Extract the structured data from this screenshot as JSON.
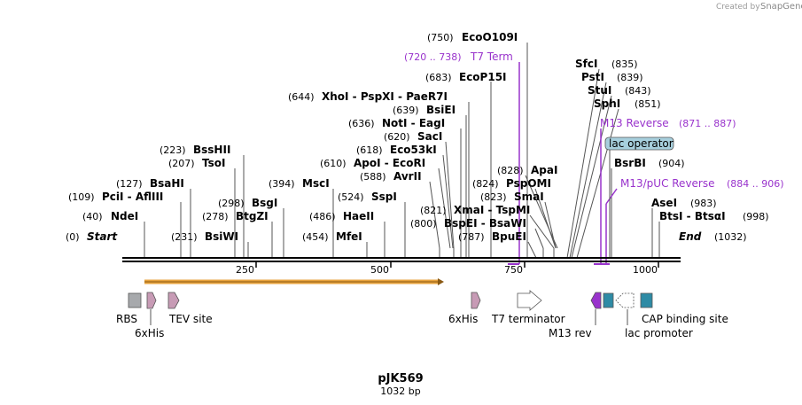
{
  "plasmid": {
    "name": "pJK569",
    "length_label": "1032 bp",
    "length": 1032
  },
  "watermark": {
    "prefix": "Created by",
    "brand": "SnapGene"
  },
  "ends": {
    "start_pos": "(0)",
    "start": "Start",
    "end": "End",
    "end_pos": "(1032)"
  },
  "ticks": [
    "250",
    "500",
    "750",
    "1000"
  ],
  "sites": [
    {
      "pos": "(750)",
      "name": "EcoO109I"
    },
    {
      "pos": "(683)",
      "name": "EcoP15I"
    },
    {
      "pos": "(644)",
      "name": "XhoI - PspXI - PaeR7I"
    },
    {
      "pos": "(639)",
      "name": "BsiEI"
    },
    {
      "pos": "(636)",
      "name": "NotI - EagI"
    },
    {
      "pos": "(620)",
      "name": "SacI"
    },
    {
      "pos": "(618)",
      "name": "Eco53kI"
    },
    {
      "pos": "(610)",
      "name": "ApoI - EcoRI"
    },
    {
      "pos": "(588)",
      "name": "AvrII"
    },
    {
      "pos": "(524)",
      "name": "SspI"
    },
    {
      "pos": "(486)",
      "name": "HaeII"
    },
    {
      "pos": "(454)",
      "name": "MfeI"
    },
    {
      "pos": "(394)",
      "name": "MscI"
    },
    {
      "pos": "(298)",
      "name": "BsgI"
    },
    {
      "pos": "(278)",
      "name": "BtgZI"
    },
    {
      "pos": "(231)",
      "name": "BsiWI"
    },
    {
      "pos": "(223)",
      "name": "BssHII"
    },
    {
      "pos": "(207)",
      "name": "TsoI"
    },
    {
      "pos": "(127)",
      "name": "BsaHI"
    },
    {
      "pos": "(109)",
      "name": "PciI - AflIII"
    },
    {
      "pos": "(40)",
      "name": "NdeI"
    },
    {
      "pos": "(828)",
      "name": "ApaI"
    },
    {
      "pos": "(824)",
      "name": "PspOMI"
    },
    {
      "pos": "(823)",
      "name": "SmaI"
    },
    {
      "pos": "(821)",
      "name": "XmaI - TspMI"
    },
    {
      "pos": "(800)",
      "name": "BspEI - BsaWI"
    },
    {
      "pos": "(787)",
      "name": "BpuEI"
    },
    {
      "pos": "(835)",
      "name": "SfcI"
    },
    {
      "pos": "(839)",
      "name": "PstI"
    },
    {
      "pos": "(843)",
      "name": "StuI"
    },
    {
      "pos": "(851)",
      "name": "SphI"
    },
    {
      "pos": "(904)",
      "name": "BsrBI"
    },
    {
      "pos": "(983)",
      "name": "AseI"
    },
    {
      "pos": "(998)",
      "name": "BtsI - BtsαI"
    }
  ],
  "primers": [
    {
      "name": "T7 Term",
      "range": "(720 .. 738)"
    },
    {
      "name": "M13 Reverse",
      "range": "(871 .. 887)"
    },
    {
      "name": "M13/pUC Reverse",
      "range": "(884 .. 906)"
    }
  ],
  "operator": "lac operator",
  "features": {
    "rbs": "RBS",
    "his1": "6xHis",
    "tev": "TEV site",
    "his2": "6xHis",
    "t7term": "T7 terminator",
    "m13rev": "M13 rev",
    "lacprom": "lac promoter",
    "cap": "CAP binding site"
  },
  "colors": {
    "primer": "#9933cc",
    "orf": "#e8a33d",
    "tag": "#c79bb5",
    "rbs": "#a7a9ac",
    "cap": "#2e8ba5",
    "operator": "#a7cfdd",
    "backbone": "#000000"
  }
}
